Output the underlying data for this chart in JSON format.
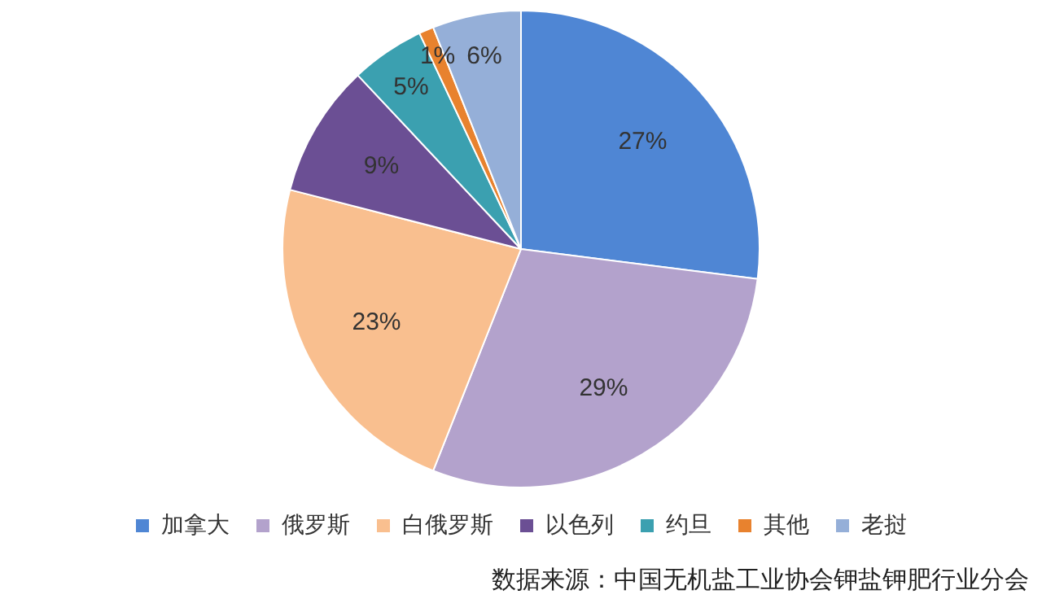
{
  "chart_data": {
    "type": "pie",
    "categories": [
      "加拿大",
      "俄罗斯",
      "白俄罗斯",
      "以色列",
      "约旦",
      "其他",
      "老挝"
    ],
    "values": [
      27,
      29,
      23,
      9,
      5,
      1,
      6
    ],
    "colors": [
      "#4f86d4",
      "#b3a2cc",
      "#f9bf8f",
      "#6b4f94",
      "#3ba0b0",
      "#e8822e",
      "#95afd8"
    ],
    "value_labels": [
      "27%",
      "29%",
      "23%",
      "9%",
      "5%",
      "1%",
      "6%"
    ],
    "legend": "bottom",
    "annotations": [
      "数据来源：中国无机盐工业协会钾盐钾肥行业分会"
    ]
  }
}
